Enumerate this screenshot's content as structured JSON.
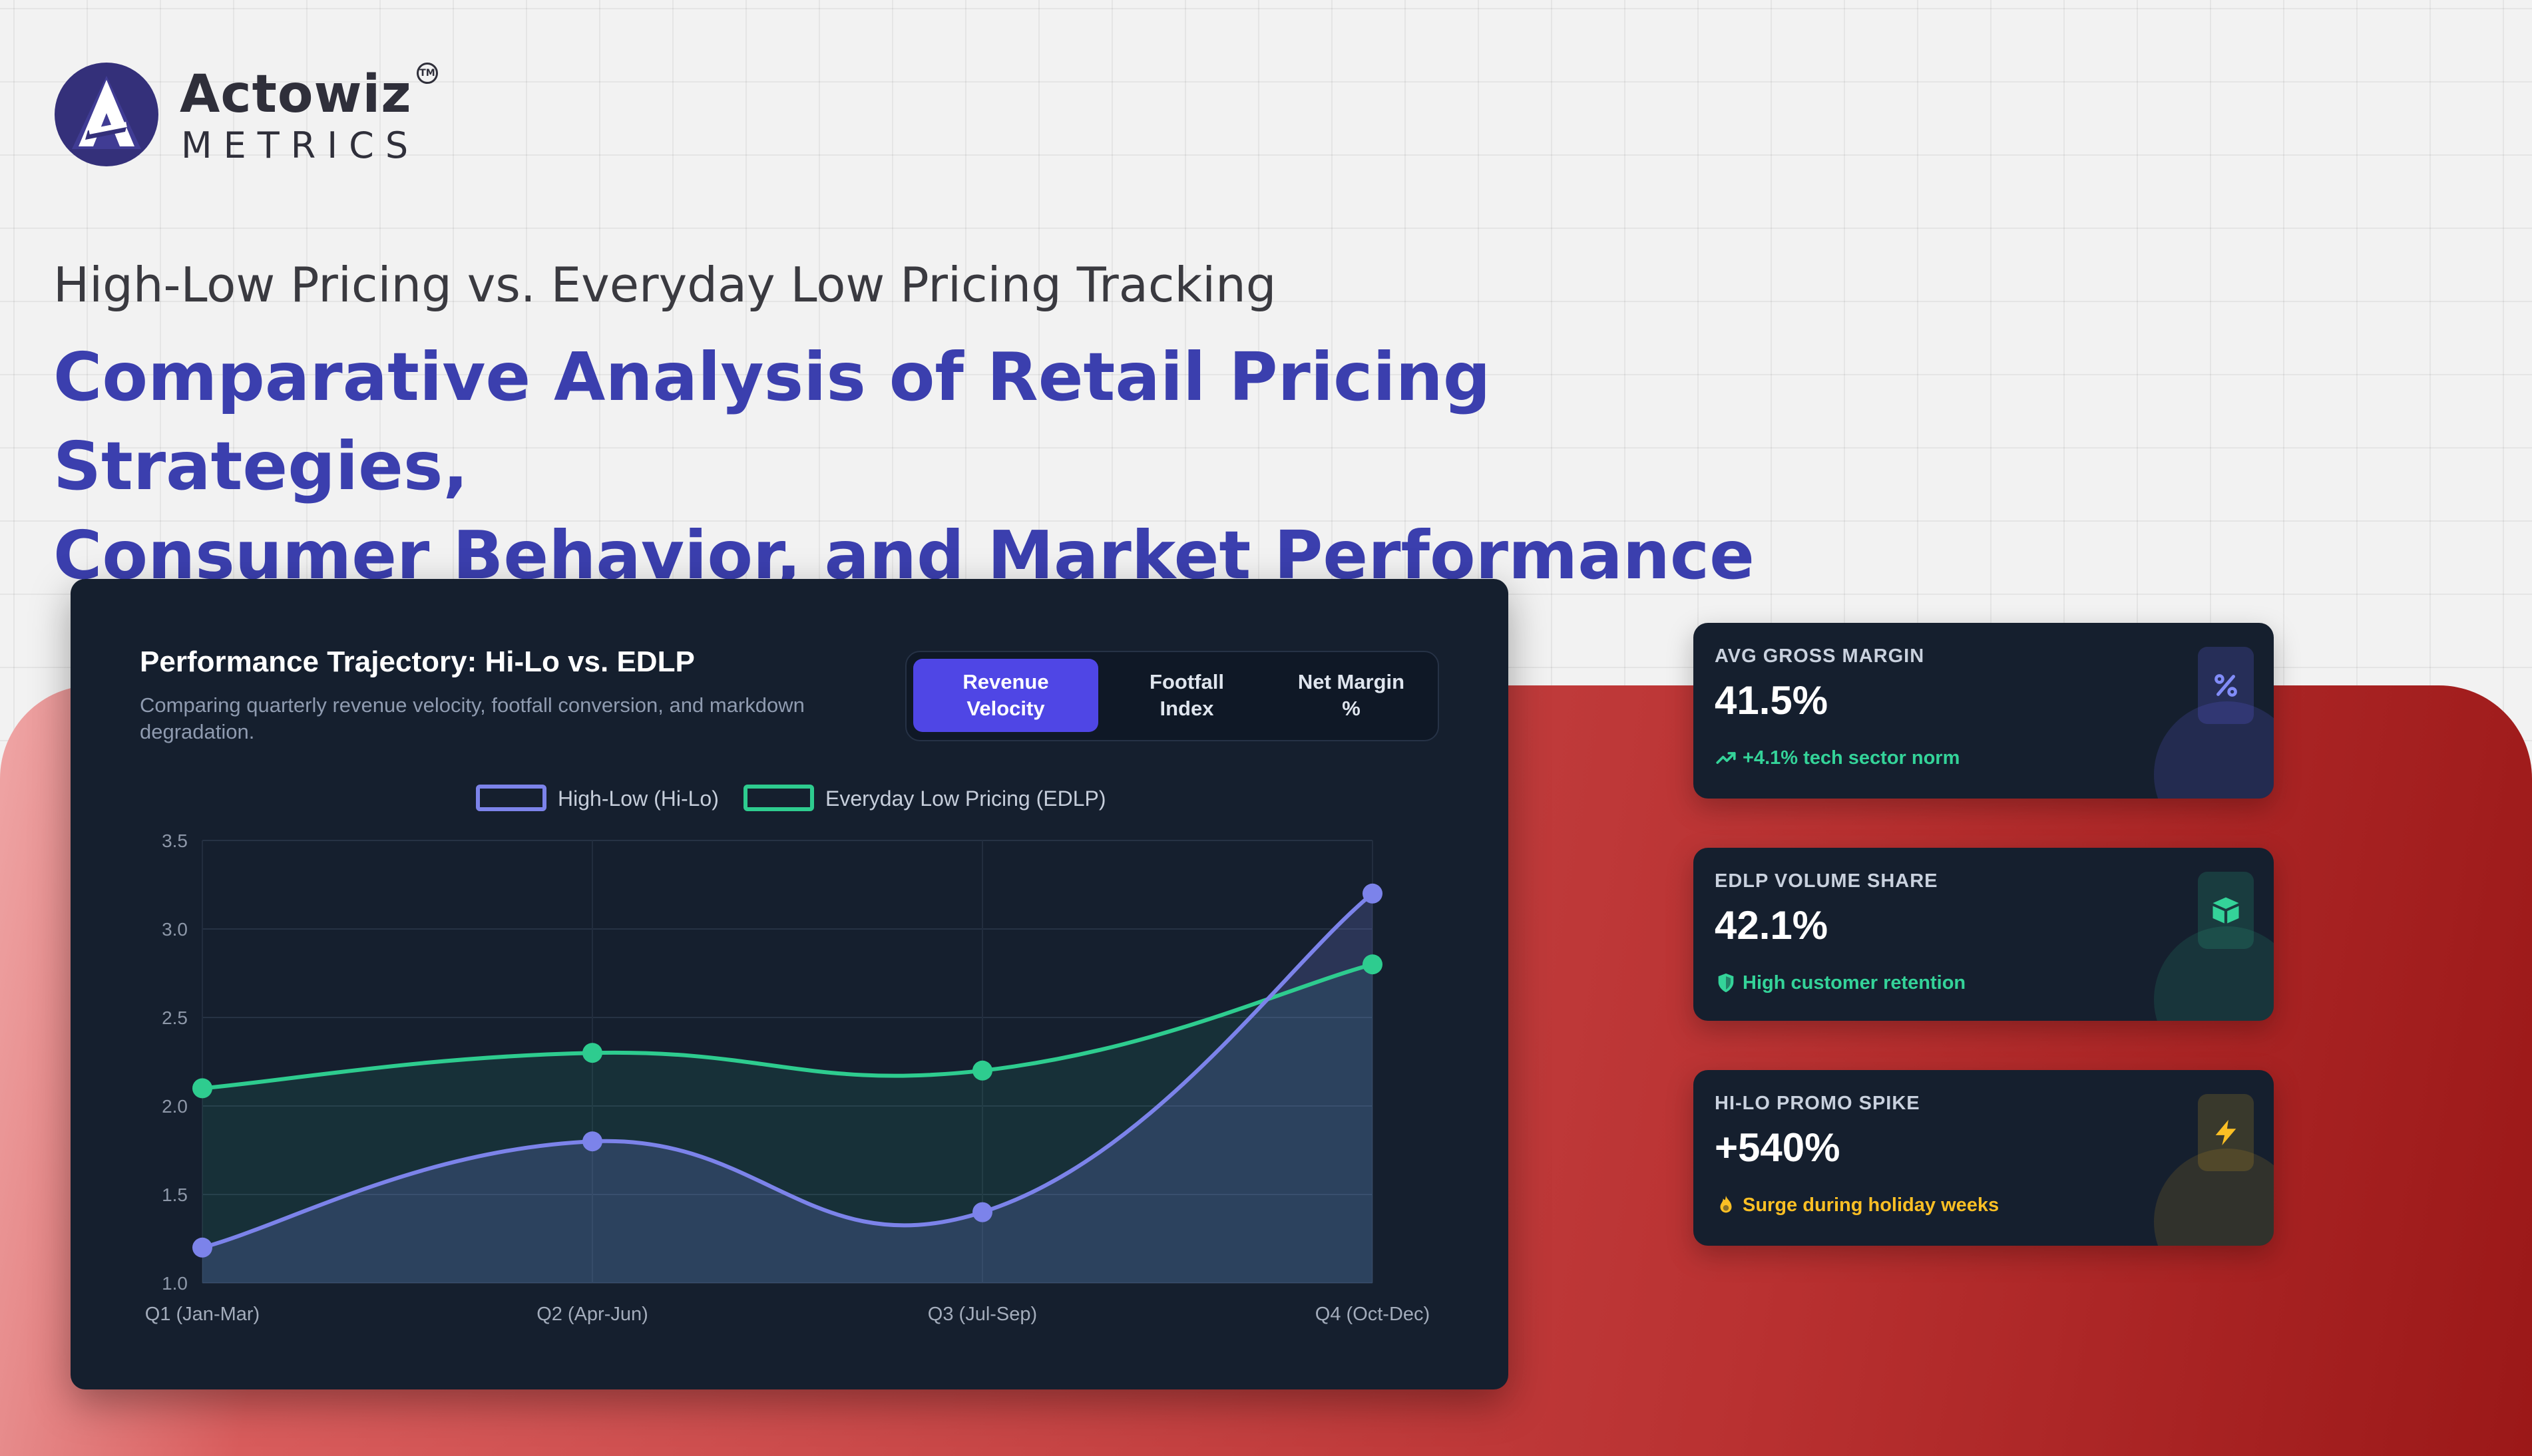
{
  "brand": {
    "name": "Actowiz",
    "sub": "METRICS",
    "tm": "TM"
  },
  "page": {
    "subtitle": "High-Low Pricing vs. Everyday Low Pricing Tracking",
    "headline_line1": "Comparative Analysis of Retail Pricing Strategies,",
    "headline_line2": "Consumer Behavior, and Market Performance"
  },
  "card": {
    "title": "Performance Trajectory: Hi-Lo vs. EDLP",
    "description": "Comparing quarterly revenue velocity, footfall conversion, and markdown degradation.",
    "tabs": [
      {
        "line1": "Revenue",
        "line2": "Velocity",
        "active": true
      },
      {
        "line1": "Footfall",
        "line2": "Index",
        "active": false
      },
      {
        "line1": "Net Margin",
        "line2": "%",
        "active": false
      }
    ]
  },
  "chart_data": {
    "type": "line",
    "title": "",
    "xlabel": "",
    "ylabel": "",
    "categories": [
      "Q1 (Jan-Mar)",
      "Q2 (Apr-Jun)",
      "Q3 (Jul-Sep)",
      "Q4 (Oct-Dec)"
    ],
    "series": [
      {
        "name": "High-Low (Hi-Lo)",
        "values": [
          1.2,
          1.8,
          1.4,
          3.2
        ],
        "color": "#7c83ea"
      },
      {
        "name": "Everyday Low Pricing (EDLP)",
        "values": [
          2.1,
          2.3,
          2.2,
          2.8
        ],
        "color": "#2ecc8f"
      }
    ],
    "ylim": [
      1.0,
      3.5
    ],
    "yticks": [
      "1.0",
      "1.5",
      "2.0",
      "2.5",
      "3.0",
      "3.5"
    ],
    "grid": true,
    "fill": true,
    "legend": "top-center"
  },
  "kpis": [
    {
      "label": "AVG GROSS MARGIN",
      "value": "41.5%",
      "note": "+4.1% tech sector norm",
      "icon": "percent-icon",
      "accent": "#818cf8",
      "note_color": "#34d399"
    },
    {
      "label": "EDLP VOLUME SHARE",
      "value": "42.1%",
      "note": "High customer retention",
      "icon": "box-icon",
      "accent": "#34d399",
      "note_color": "#34d399"
    },
    {
      "label": "HI-LO PROMO SPIKE",
      "value": "+540%",
      "note": "Surge during holiday weeks",
      "icon": "bolt-icon",
      "accent": "#fbbf24",
      "note_color": "#fbbf24"
    }
  ],
  "colors": {
    "headline": "#3b3fae",
    "card_bg": "#151f2e",
    "tab_active": "#4f46e5",
    "band_red": "#c94848"
  }
}
